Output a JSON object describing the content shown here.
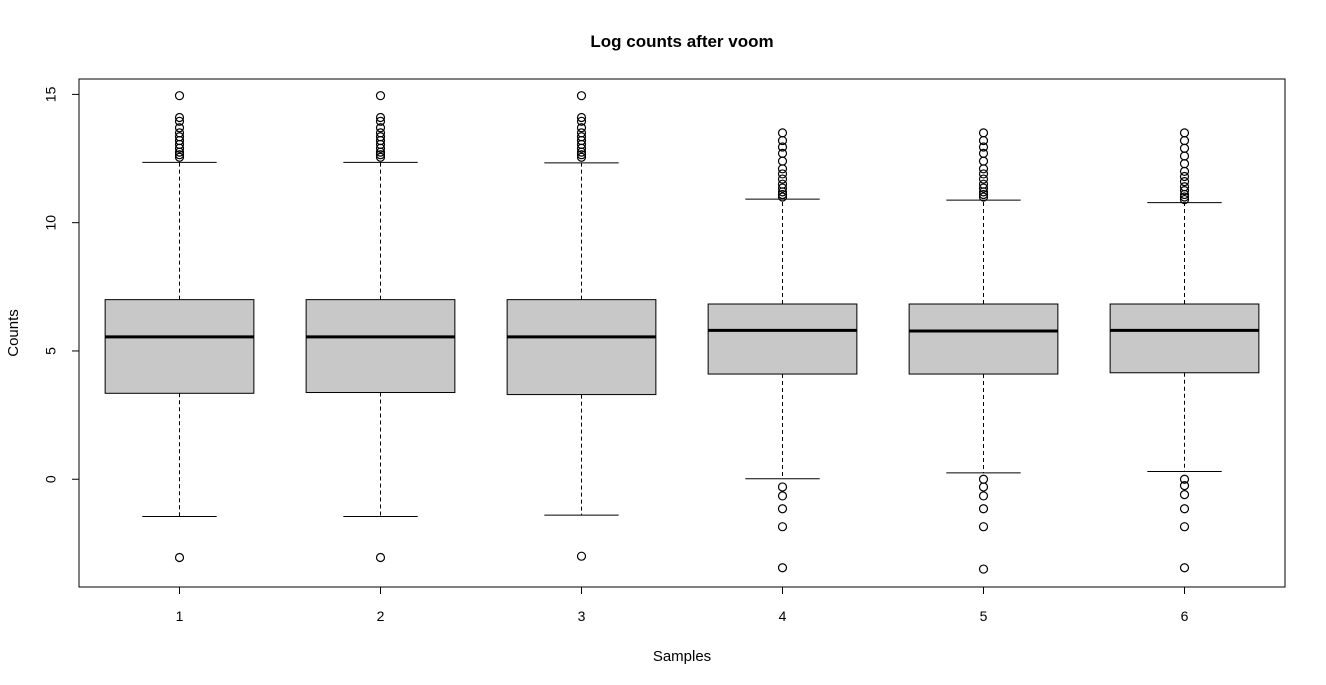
{
  "chart_data": {
    "type": "boxplot",
    "title": "Log counts after voom",
    "xlabel": "Samples",
    "ylabel": "Counts",
    "categories": [
      "1",
      "2",
      "3",
      "4",
      "5",
      "6"
    ],
    "ylim": [
      -4.2,
      15.6
    ],
    "y_ticks": [
      0,
      5,
      10,
      15
    ],
    "grid": false,
    "legend": "none",
    "colors": {
      "box_fill": "#c8c8c8",
      "stroke": "#000000"
    },
    "boxes": [
      {
        "sample": "1",
        "whisker_low": -1.45,
        "q1": 3.35,
        "median": 5.55,
        "q3": 7.0,
        "whisker_high": 12.35,
        "outliers": [
          -3.05,
          12.55,
          12.65,
          12.75,
          12.9,
          13.05,
          13.2,
          13.35,
          13.5,
          13.7,
          13.95,
          14.1,
          14.95
        ]
      },
      {
        "sample": "2",
        "whisker_low": -1.45,
        "q1": 3.38,
        "median": 5.55,
        "q3": 7.0,
        "whisker_high": 12.35,
        "outliers": [
          -3.05,
          12.55,
          12.65,
          12.75,
          12.9,
          13.05,
          13.2,
          13.35,
          13.5,
          13.7,
          13.95,
          14.1,
          14.95
        ]
      },
      {
        "sample": "3",
        "whisker_low": -1.4,
        "q1": 3.3,
        "median": 5.55,
        "q3": 7.0,
        "whisker_high": 12.33,
        "outliers": [
          -3.0,
          12.55,
          12.65,
          12.75,
          12.9,
          13.05,
          13.2,
          13.35,
          13.5,
          13.7,
          13.95,
          14.1,
          14.95
        ]
      },
      {
        "sample": "4",
        "whisker_low": 0.02,
        "q1": 4.1,
        "median": 5.8,
        "q3": 6.83,
        "whisker_high": 10.92,
        "outliers": [
          -3.45,
          -1.85,
          -1.15,
          -0.65,
          -0.3,
          11.0,
          11.1,
          11.2,
          11.35,
          11.5,
          11.7,
          11.9,
          12.1,
          12.4,
          12.7,
          12.95,
          13.2,
          13.5
        ]
      },
      {
        "sample": "5",
        "whisker_low": 0.25,
        "q1": 4.1,
        "median": 5.78,
        "q3": 6.83,
        "whisker_high": 10.88,
        "outliers": [
          -3.5,
          -1.85,
          -1.15,
          -0.65,
          -0.3,
          0.0,
          11.0,
          11.1,
          11.2,
          11.35,
          11.5,
          11.7,
          11.9,
          12.1,
          12.4,
          12.7,
          12.95,
          13.2,
          13.5
        ]
      },
      {
        "sample": "6",
        "whisker_low": 0.3,
        "q1": 4.15,
        "median": 5.8,
        "q3": 6.83,
        "whisker_high": 10.78,
        "outliers": [
          -3.45,
          -1.85,
          -1.15,
          -0.6,
          -0.25,
          0.0,
          10.9,
          11.0,
          11.1,
          11.25,
          11.4,
          11.6,
          11.8,
          12.0,
          12.3,
          12.6,
          12.9,
          13.2,
          13.5
        ]
      }
    ]
  }
}
